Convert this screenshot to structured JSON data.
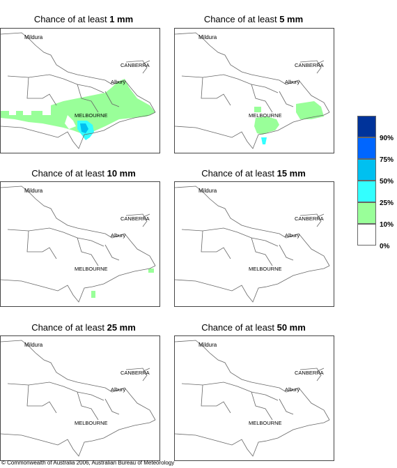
{
  "panels": [
    {
      "title_prefix": "Chance of at least ",
      "amount": "1 mm"
    },
    {
      "title_prefix": "Chance of at least ",
      "amount": "5 mm"
    },
    {
      "title_prefix": "Chance of at least ",
      "amount": "10 mm"
    },
    {
      "title_prefix": "Chance of at least ",
      "amount": "15 mm"
    },
    {
      "title_prefix": "Chance of at least ",
      "amount": "25 mm"
    },
    {
      "title_prefix": "Chance of at least ",
      "amount": "50 mm"
    }
  ],
  "places": {
    "mildura": "Mildura",
    "canberra": "CANBERRA",
    "albury": "Albury",
    "melbourne": "MELBOURNE"
  },
  "legend": [
    {
      "label": "90%",
      "color": "#00339a"
    },
    {
      "label": "75%",
      "color": "#0066ff"
    },
    {
      "label": "50%",
      "color": "#00c0f0"
    },
    {
      "label": "25%",
      "color": "#33ffff"
    },
    {
      "label": "10%",
      "color": "#99ff99"
    },
    {
      "label": "0%",
      "color": "#ffffff"
    }
  ],
  "copyright": "© Commonwealth of Australia 2006, Australian Bureau of Meteorology"
}
